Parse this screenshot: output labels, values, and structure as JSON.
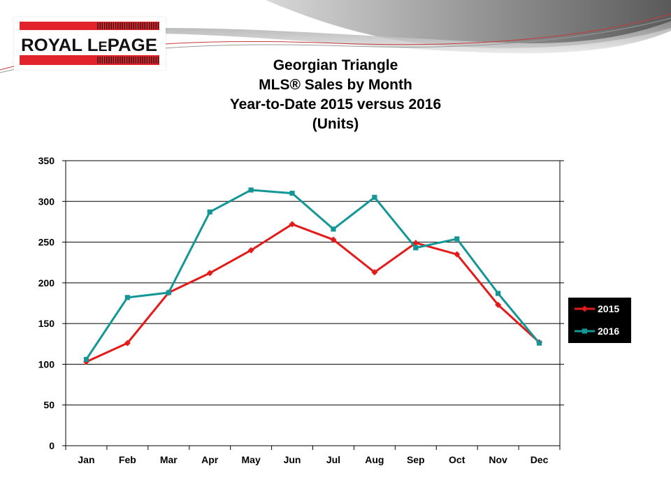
{
  "logo": {
    "text": "ROYAL LEPAGE",
    "bar_color": "#e3232b"
  },
  "title_lines": [
    "Georgian Triangle",
    "MLS® Sales by Month",
    "Year-to-Date 2015 versus 2016",
    "(Units)"
  ],
  "chart_data": {
    "type": "line",
    "title": "Georgian Triangle MLS® Sales by Month Year-to-Date 2015 versus 2016 (Units)",
    "categories": [
      "Jan",
      "Feb",
      "Mar",
      "Apr",
      "May",
      "Jun",
      "Jul",
      "Aug",
      "Sep",
      "Oct",
      "Nov",
      "Dec"
    ],
    "ylim": [
      0,
      350
    ],
    "yticks": [
      0,
      50,
      100,
      150,
      200,
      250,
      300,
      350
    ],
    "grid": true,
    "legend_position": "right",
    "series": [
      {
        "name": "2015",
        "color": "#e31b1b",
        "marker": "diamond",
        "values": [
          103,
          126,
          188,
          212,
          240,
          272,
          253,
          213,
          249,
          235,
          173,
          127
        ]
      },
      {
        "name": "2016",
        "color": "#159696",
        "marker": "square",
        "values": [
          106,
          182,
          188,
          287,
          314,
          310,
          266,
          305,
          243,
          254,
          187,
          126
        ]
      }
    ]
  }
}
